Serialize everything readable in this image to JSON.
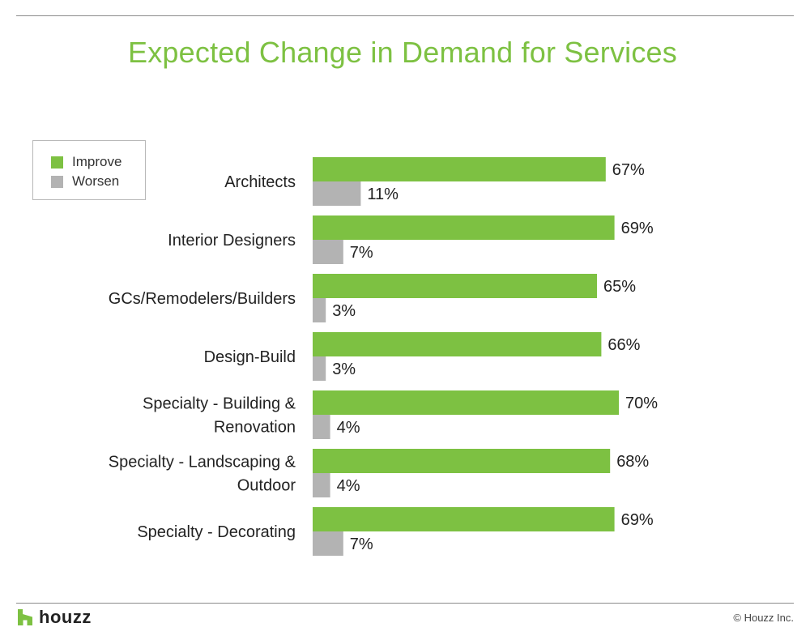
{
  "chart_data": {
    "type": "bar",
    "orientation": "horizontal",
    "title": "Expected Change in Demand for Services",
    "categories": [
      "Architects",
      "Interior Designers",
      "GCs/Remodelers/Builders",
      "Design-Build",
      "Specialty - Building & Renovation",
      "Specialty - Landscaping & Outdoor",
      "Specialty - Decorating"
    ],
    "category_lines": [
      [
        "Architects"
      ],
      [
        "Interior Designers"
      ],
      [
        "GCs/Remodelers/Builders"
      ],
      [
        "Design-Build"
      ],
      [
        "Specialty - Building &",
        "Renovation"
      ],
      [
        "Specialty - Landscaping &",
        "Outdoor"
      ],
      [
        "Specialty - Decorating"
      ]
    ],
    "series": [
      {
        "name": "Improve",
        "color": "#7dc142",
        "values": [
          67,
          69,
          65,
          66,
          70,
          68,
          69
        ]
      },
      {
        "name": "Worsen",
        "color": "#b3b3b3",
        "values": [
          11,
          7,
          3,
          3,
          4,
          4,
          7
        ]
      }
    ],
    "value_suffix": "%",
    "xlim": [
      0,
      100
    ],
    "grid": false,
    "legend": "top-left"
  },
  "legend": {
    "items": [
      {
        "label": "Improve",
        "color": "#7dc142"
      },
      {
        "label": "Worsen",
        "color": "#b3b3b3"
      }
    ]
  },
  "footer": {
    "brand": "houzz",
    "brand_icon": "houzz-logo-icon",
    "copyright": "© Houzz Inc."
  }
}
